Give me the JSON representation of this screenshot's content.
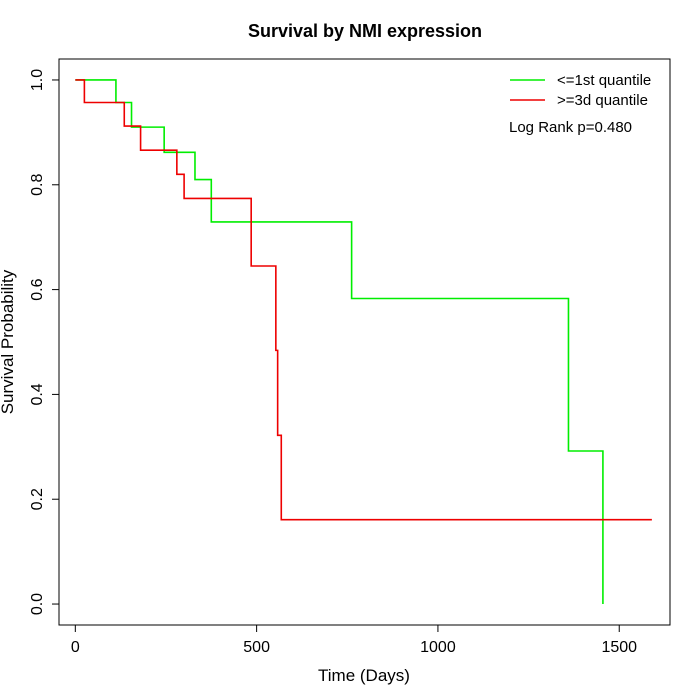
{
  "chart_data": {
    "type": "line",
    "title": "Survival by NMI expression",
    "xlabel": "Time (Days)",
    "ylabel": "Survival Probability",
    "xlim": [
      -45,
      1640
    ],
    "ylim": [
      -0.04,
      1.04
    ],
    "x_ticks": [
      0,
      500,
      1000,
      1500
    ],
    "x_tick_labels": [
      "0",
      "500",
      "1000",
      "1500"
    ],
    "y_ticks": [
      0.0,
      0.2,
      0.4,
      0.6,
      0.8,
      1.0
    ],
    "y_tick_labels": [
      "0.0",
      "0.2",
      "0.4",
      "0.6",
      "0.8",
      "1.0"
    ],
    "grid": false,
    "legend_position": "top-right",
    "annotation": "Log Rank p=0.480",
    "series": [
      {
        "name": "<=1st quantile",
        "color": "#00ee00",
        "step": true,
        "points": [
          {
            "x": 0,
            "y": 1.0
          },
          {
            "x": 112,
            "y": 0.957
          },
          {
            "x": 155,
            "y": 0.91
          },
          {
            "x": 245,
            "y": 0.862
          },
          {
            "x": 330,
            "y": 0.81
          },
          {
            "x": 375,
            "y": 0.729
          },
          {
            "x": 762,
            "y": 0.583
          },
          {
            "x": 1360,
            "y": 0.292
          },
          {
            "x": 1455,
            "y": 0.0
          }
        ]
      },
      {
        "name": ">=3d quantile",
        "color": "#ee0000",
        "step": true,
        "points": [
          {
            "x": 0,
            "y": 1.0
          },
          {
            "x": 25,
            "y": 0.957
          },
          {
            "x": 135,
            "y": 0.912
          },
          {
            "x": 180,
            "y": 0.866
          },
          {
            "x": 280,
            "y": 0.82
          },
          {
            "x": 300,
            "y": 0.774
          },
          {
            "x": 485,
            "y": 0.645
          },
          {
            "x": 553,
            "y": 0.484
          },
          {
            "x": 558,
            "y": 0.322
          },
          {
            "x": 568,
            "y": 0.161
          },
          {
            "x": 1590,
            "y": 0.161
          }
        ]
      }
    ]
  }
}
